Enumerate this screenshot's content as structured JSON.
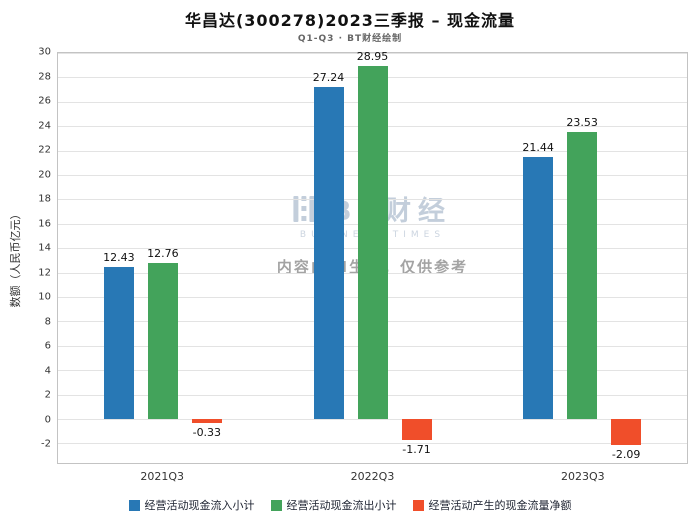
{
  "title": "华昌达(300278)2023三季报 – 现金流量",
  "subtitle": "Q1-Q3 · BT财经绘制",
  "watermark": {
    "logo_text": "BT财经",
    "logo_sub": "BUSINESS TIMES",
    "notice": "内容由AI生成，仅供参考"
  },
  "chart_data": {
    "type": "bar",
    "title": "华昌达(300278)2023三季报 – 现金流量",
    "subtitle": "Q1-Q3 · BT财经绘制",
    "xlabel": "",
    "ylabel": "数额（人民币亿元）",
    "categories": [
      "2021Q3",
      "2022Q3",
      "2023Q3"
    ],
    "series": [
      {
        "name": "经营活动现金流入小计",
        "color": "#2878b5",
        "values": [
          12.43,
          27.24,
          21.44
        ]
      },
      {
        "name": "经营活动现金流出小计",
        "color": "#43a35b",
        "values": [
          12.76,
          28.95,
          23.53
        ]
      },
      {
        "name": "经营活动产生的现金流量净额",
        "color": "#f04e2a",
        "values": [
          -0.33,
          -1.71,
          -2.09
        ]
      }
    ],
    "ylim": [
      -3.6,
      30
    ],
    "yticks": [
      -2,
      0,
      2,
      4,
      6,
      8,
      10,
      12,
      14,
      16,
      18,
      20,
      22,
      24,
      26,
      28,
      30
    ],
    "grid": true,
    "legend_position": "bottom"
  }
}
